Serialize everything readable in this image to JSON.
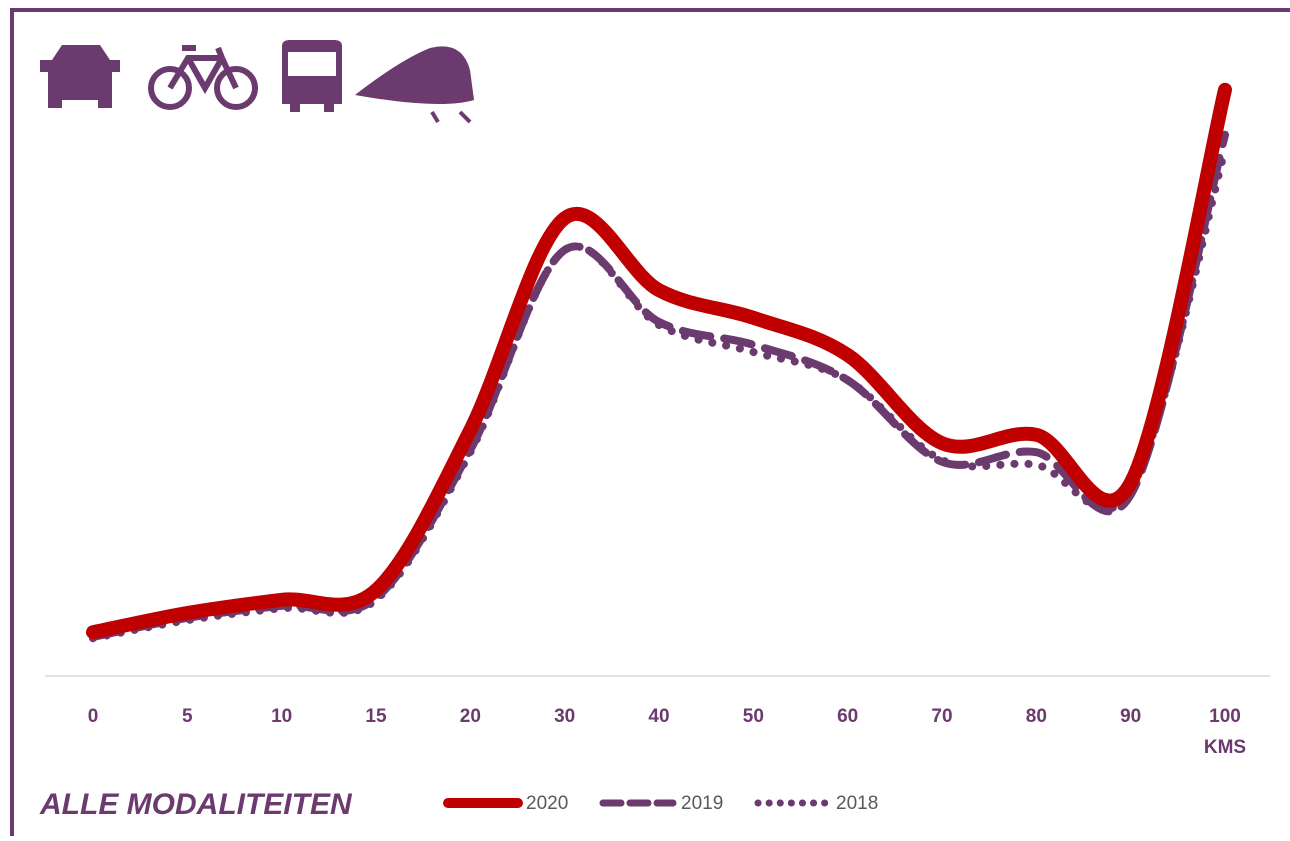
{
  "chart_data": {
    "type": "line",
    "title": "ALLE MODALITEITEN",
    "x_label": "KMS",
    "categories": [
      "0",
      "5",
      "10",
      "15",
      "20",
      "30",
      "40",
      "50",
      "60",
      "70",
      "80",
      "90",
      "100"
    ],
    "ylim": [
      0,
      100
    ],
    "series": [
      {
        "name": "2020",
        "color": "#c00000",
        "style": "solid",
        "values": [
          7.3,
          10.5,
          12.7,
          14.3,
          41,
          76.3,
          64.3,
          59.7,
          53.5,
          38.8,
          40.2,
          32.2,
          97.7
        ]
      },
      {
        "name": "2019",
        "color": "#6b3a6e",
        "style": "dashed",
        "values": [
          6.5,
          9.7,
          11.7,
          13,
          37.7,
          71,
          59,
          55.2,
          49.3,
          35.7,
          37.3,
          30.2,
          90.2
        ]
      },
      {
        "name": "2018",
        "color": "#6b3a6e",
        "style": "dotted",
        "values": [
          6.3,
          9.3,
          11.3,
          12.7,
          37.3,
          71,
          58.5,
          54,
          49.3,
          36,
          35.2,
          31,
          87.7
        ]
      }
    ]
  }
}
